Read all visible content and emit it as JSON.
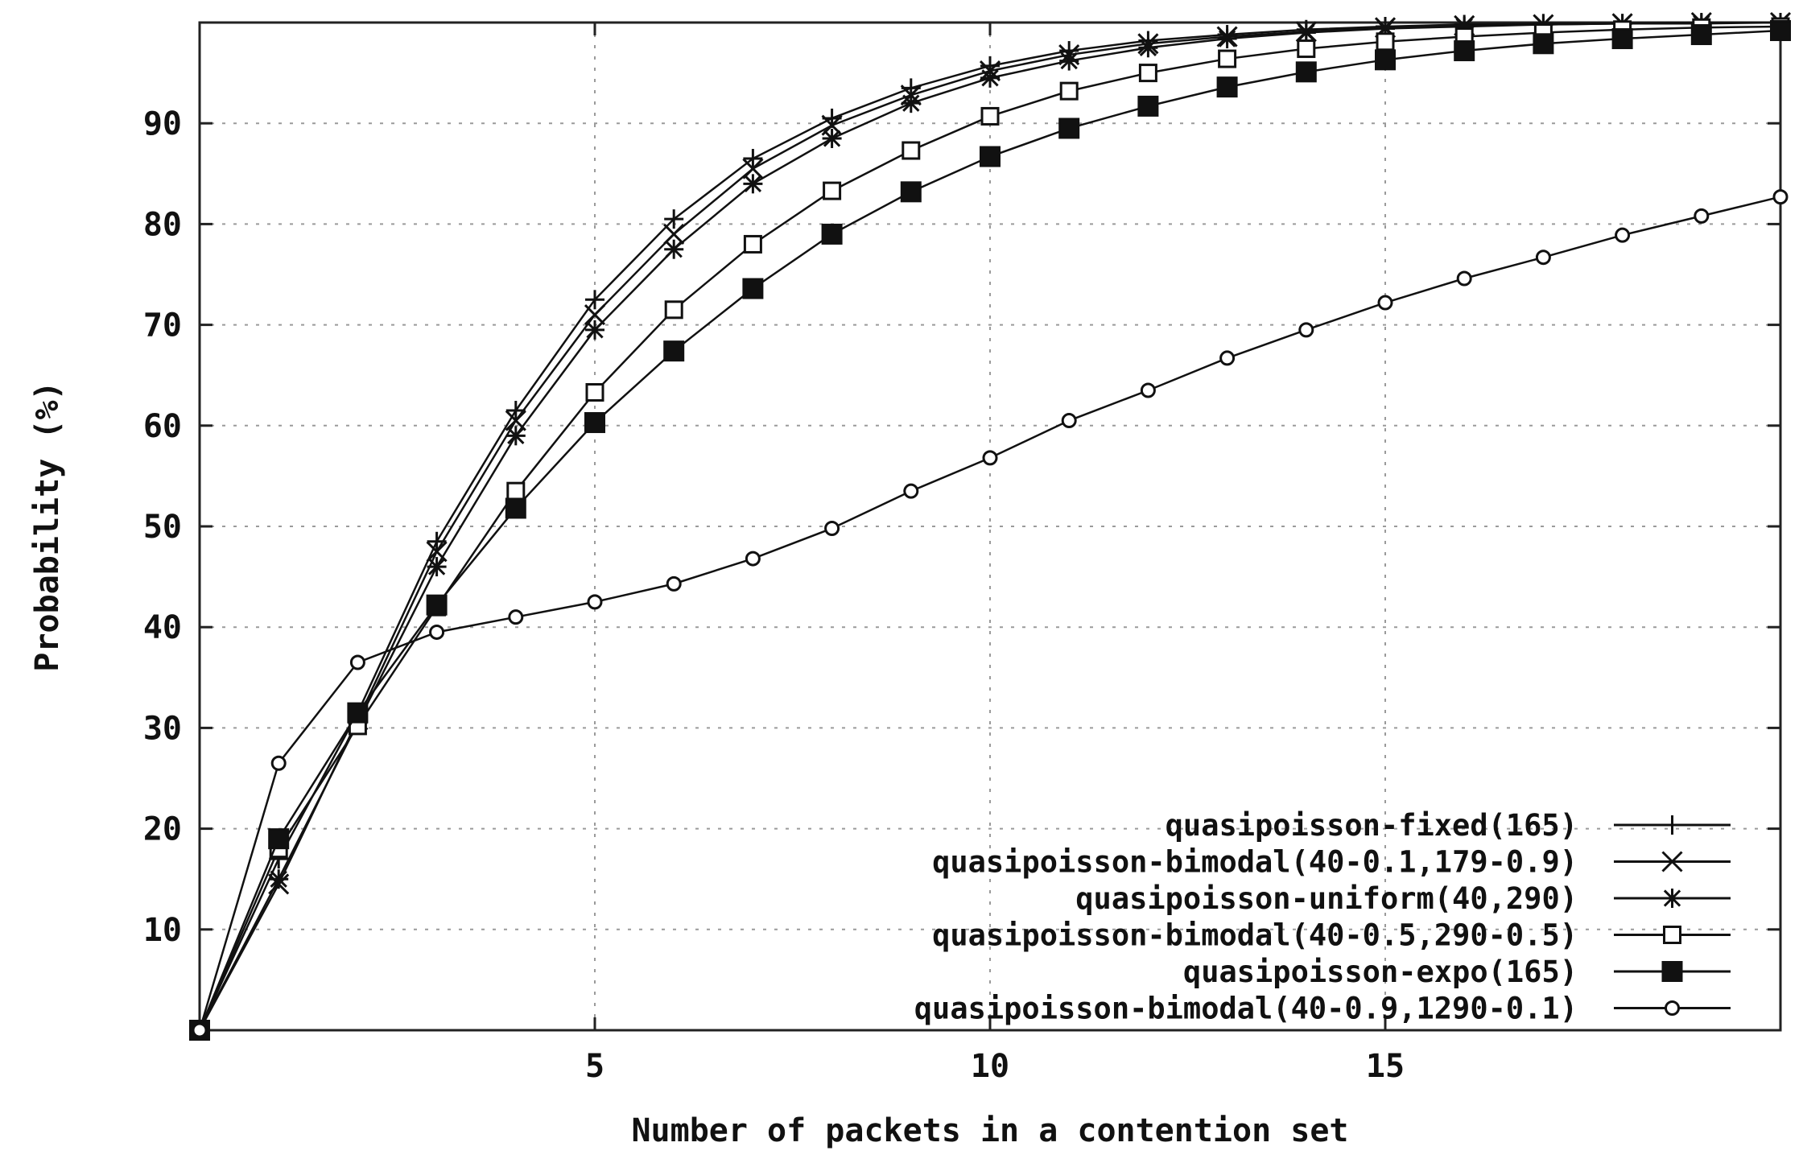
{
  "chart_data": {
    "type": "line",
    "title": "",
    "xlabel": "Number of packets in a contention set",
    "ylabel": "Probability (%)",
    "xlim": [
      0,
      20
    ],
    "ylim": [
      0,
      100
    ],
    "xticks": [
      5,
      10,
      15
    ],
    "xtick_labels": [
      "5",
      "10",
      "15"
    ],
    "yticks": [
      10,
      20,
      30,
      40,
      50,
      60,
      70,
      80,
      90
    ],
    "ytick_labels": [
      "10",
      "20",
      "30",
      "40",
      "50",
      "60",
      "70",
      "80",
      "90"
    ],
    "grid": true,
    "legend_position": "bottom-right",
    "x": [
      0,
      1,
      2,
      3,
      4,
      5,
      6,
      7,
      8,
      9,
      10,
      11,
      12,
      13,
      14,
      15,
      16,
      17,
      18,
      19,
      20
    ],
    "series": [
      {
        "name": "quasipoisson-fixed(165)",
        "marker": "plus",
        "values": [
          0,
          17.0,
          31.5,
          48.5,
          61.5,
          72.5,
          80.5,
          86.5,
          90.5,
          93.5,
          95.7,
          97.2,
          98.2,
          98.8,
          99.3,
          99.6,
          99.8,
          99.9,
          99.9,
          100.0,
          100.0
        ]
      },
      {
        "name": "quasipoisson-bimodal(40-0.1,179-0.9)",
        "marker": "cross",
        "values": [
          0,
          14.5,
          30.8,
          47.5,
          60.5,
          71.0,
          79.0,
          85.5,
          89.8,
          92.8,
          95.2,
          96.8,
          97.9,
          98.6,
          99.1,
          99.5,
          99.7,
          99.8,
          99.9,
          100.0,
          100.0
        ]
      },
      {
        "name": "quasipoisson-uniform(40,290)",
        "marker": "star",
        "values": [
          0,
          15.0,
          30.5,
          46.0,
          59.0,
          69.5,
          77.5,
          84.0,
          88.5,
          92.0,
          94.5,
          96.2,
          97.5,
          98.4,
          99.0,
          99.4,
          99.6,
          99.8,
          99.9,
          99.9,
          100.0
        ]
      },
      {
        "name": "quasipoisson-bimodal(40-0.5,290-0.5)",
        "marker": "open-square",
        "values": [
          0,
          18.0,
          30.2,
          42.0,
          53.5,
          63.3,
          71.5,
          78.0,
          83.3,
          87.3,
          90.7,
          93.2,
          95.0,
          96.4,
          97.4,
          98.1,
          98.6,
          99.0,
          99.3,
          99.5,
          99.6
        ]
      },
      {
        "name": "quasipoisson-expo(165)",
        "marker": "filled-square",
        "values": [
          0,
          19.0,
          31.5,
          42.2,
          51.8,
          60.3,
          67.4,
          73.6,
          79.0,
          83.2,
          86.7,
          89.5,
          91.7,
          93.6,
          95.1,
          96.3,
          97.2,
          97.9,
          98.4,
          98.8,
          99.2
        ]
      },
      {
        "name": "quasipoisson-bimodal(40-0.9,1290-0.1)",
        "marker": "open-circle",
        "values": [
          0,
          26.5,
          36.5,
          39.5,
          41.0,
          42.5,
          44.3,
          46.8,
          49.8,
          53.5,
          56.8,
          60.5,
          63.5,
          66.7,
          69.5,
          72.2,
          74.6,
          76.7,
          78.9,
          80.8,
          82.7
        ]
      }
    ]
  }
}
